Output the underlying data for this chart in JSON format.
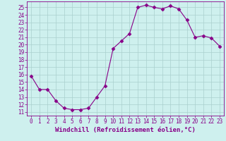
{
  "x": [
    0,
    1,
    2,
    3,
    4,
    5,
    6,
    7,
    8,
    9,
    10,
    11,
    12,
    13,
    14,
    15,
    16,
    17,
    18,
    19,
    20,
    21,
    22,
    23
  ],
  "y": [
    15.8,
    14.0,
    14.0,
    12.5,
    11.5,
    11.3,
    11.3,
    11.5,
    13.0,
    14.5,
    19.5,
    20.5,
    21.5,
    25.0,
    25.3,
    25.0,
    24.8,
    25.2,
    24.8,
    23.3,
    21.0,
    21.2,
    20.9,
    19.8
  ],
  "line_color": "#880088",
  "marker": "D",
  "markersize": 2.5,
  "linewidth": 0.8,
  "bg_color": "#cef0ee",
  "grid_color": "#aacfcd",
  "xlabel": "Windchill (Refroidissement éolien,°C)",
  "xlabel_fontsize": 6.5,
  "xlabel_color": "#880088",
  "yticks": [
    11,
    12,
    13,
    14,
    15,
    16,
    17,
    18,
    19,
    20,
    21,
    22,
    23,
    24,
    25
  ],
  "xticks": [
    0,
    1,
    2,
    3,
    4,
    5,
    6,
    7,
    8,
    9,
    10,
    11,
    12,
    13,
    14,
    15,
    16,
    17,
    18,
    19,
    20,
    21,
    22,
    23
  ],
  "ylim": [
    10.5,
    25.8
  ],
  "xlim": [
    -0.5,
    23.5
  ],
  "tick_color": "#880088",
  "tick_fontsize": 5.5
}
